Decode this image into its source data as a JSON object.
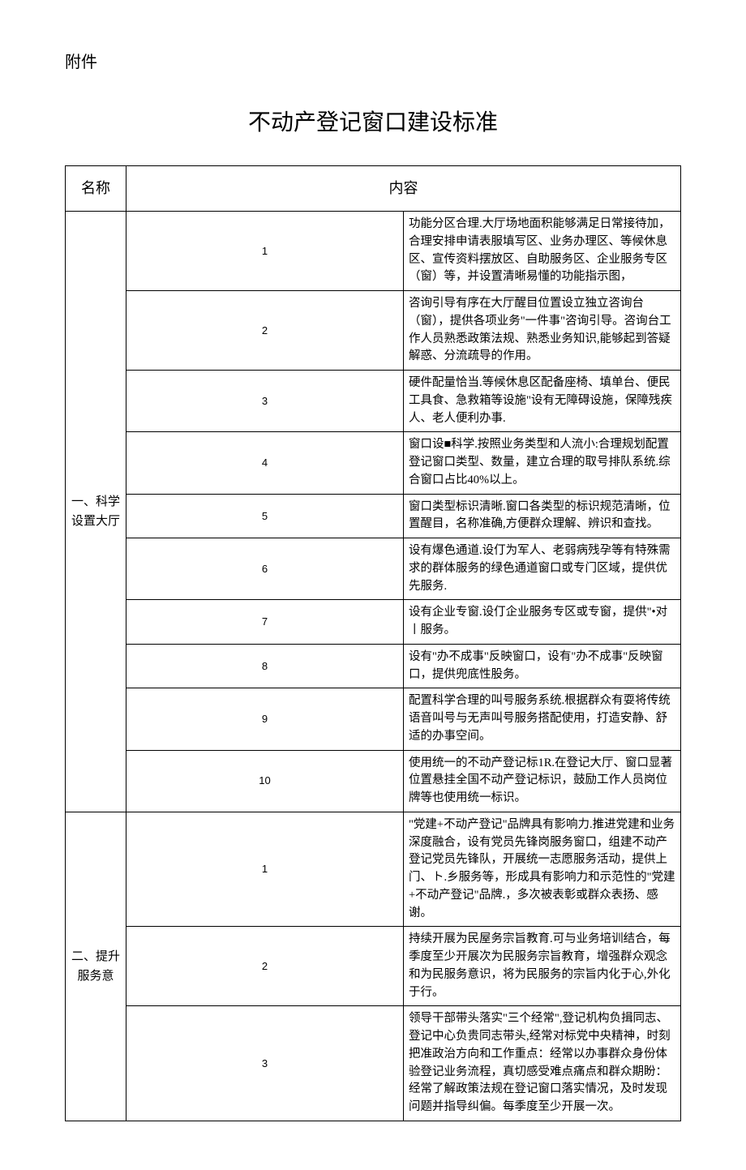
{
  "attachment_label": "附件",
  "title": "不动产登记窗口建设标准",
  "headers": {
    "name": "名称",
    "content": "内容"
  },
  "sections": [
    {
      "category": "一、科学设置大厅",
      "rows": [
        {
          "num": "1",
          "content": "功能分区合理.大厅场地面积能够满足日常接待加，合理安排申请表服填写区、业务办理区、等候休息区、宣传资料摆放区、自助服务区、企业服务专区（窗）等，并设置清晰易懂的功能指示图，"
        },
        {
          "num": "2",
          "content": "咨询引导有序在大厅醒目位置设立独立咨询台（窗），提供各项业务\"一件事\"咨询引导。咨询台工作人员熟悉政策法规、熟悉业务知识,能够起到答疑解惑、分流疏导的作用。"
        },
        {
          "num": "3",
          "content": "硬件配量恰当.等候休息区配备座椅、填单台、便民工具食、急救箱等设施\"设有无障碍设施，保障残疾人、老人便利办事."
        },
        {
          "num": "4",
          "content": "窗口设■科学.按照业务类型和人流小:合理规划配置登记窗口类型、数量，建立合理的取号排队系统.综合窗口占比40%以上。"
        },
        {
          "num": "5",
          "content": "窗口类型标识清晰.窗口各类型的标识规范清晰，位置醒目，名称准确,方便群众理解、辨识和查找。"
        },
        {
          "num": "6",
          "content": "设有爆色通道.设仃为军人、老弱病残孕等有特殊需求的群体服务的绿色通道窗口或专门区域，提供优先服务."
        },
        {
          "num": "7",
          "content": "设有企业专窗.设仃企业服务专区或专窗，提供\"•对丨服务。"
        },
        {
          "num": "8",
          "content": "设有\"办不成事\"反映窗口，设有\"办不成事\"反映窗口，提供兜底性股务。"
        },
        {
          "num": "9",
          "content": "配置科学合理的叫号服务系统.根据群众有耍将传统语音叫号与无声叫号服务搭配使用，打造安静、舒适的办事空间。"
        },
        {
          "num": "10",
          "content": "使用统一的不动产登记标1R.在登记大厅、窗口显著位置悬挂全国不动产登记标识，鼓励工作人员岗位牌等也使用统一标识。"
        }
      ]
    },
    {
      "category": "二、提升服务意",
      "rows": [
        {
          "num": "1",
          "content": "\"党建+不动产登记\"品牌具有影响力.推进党建和业务深度融合，设有党员先锋岗服务窗口，组建不动产登记党员先锋队，开展统一志愿服务活动，提供上门、ト.乡服务等，形成具有影响力和示范性的\"党建+不动产登记\"品牌.，多次被表彰或群众表扬、感谢。"
        },
        {
          "num": "2",
          "content": "持续开展为民屋务宗旨教育.可与业务培训结合，每季度至少开展次为民服务宗旨教育，增强群众观念和为民服务意识，将为民服务的宗旨内化于心,外化于行。"
        },
        {
          "num": "3",
          "content": "领导干部带头落实\"三个经常\",登记机构负揖同志、登记中心负贵同志带头,经常对标党中央精神，时刻把准政治方向和工作重点：经常以办事群众身份体验登记业务流程，真切感受难点痛点和群众期盼：经常了解政策法规在登记窗口落实情况，及时发现问题并指导纠偏。每季度至少开展一次。"
        }
      ]
    }
  ]
}
